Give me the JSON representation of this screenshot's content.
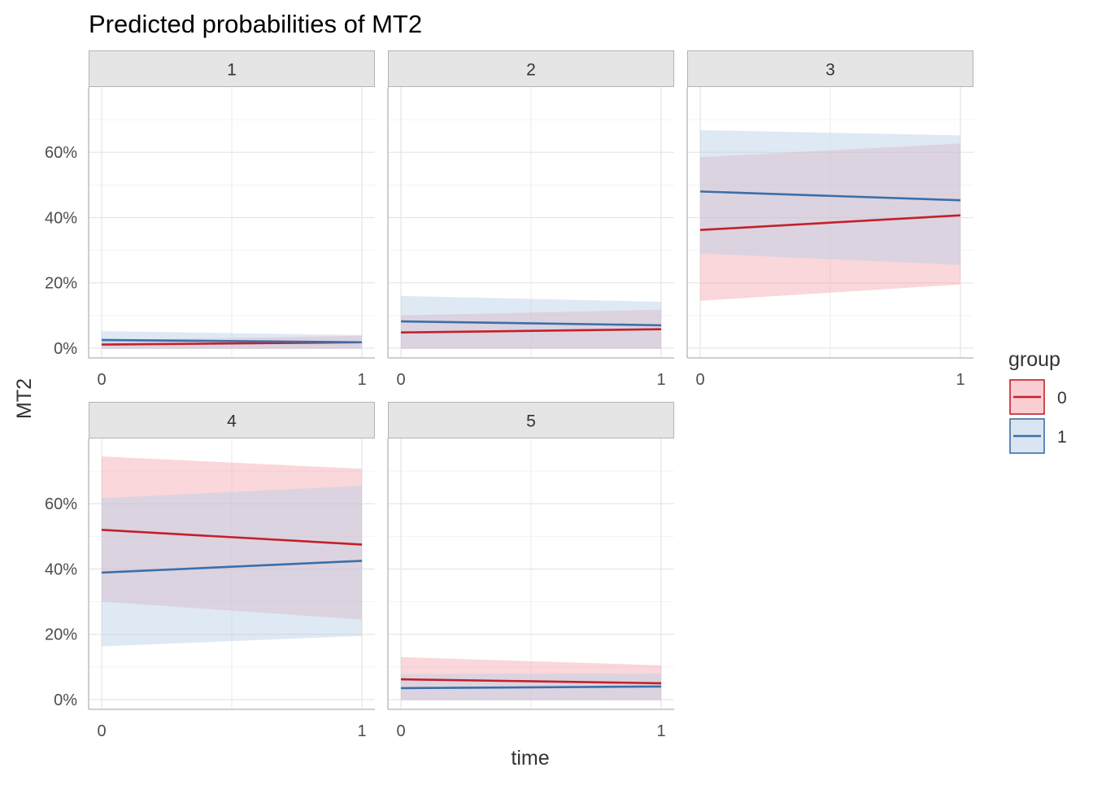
{
  "chart_data": {
    "type": "line",
    "title": "Predicted probabilities of MT2",
    "xlabel": "time",
    "ylabel": "MT2",
    "x": [
      0,
      1
    ],
    "x_ticks": [
      "0",
      "1"
    ],
    "y_ticks": [
      "0%",
      "20%",
      "40%",
      "60%"
    ],
    "y_tick_values": [
      0,
      0.2,
      0.4,
      0.6
    ],
    "ylim": [
      -0.03,
      0.8
    ],
    "grid": true,
    "legend": {
      "title": "group",
      "position": "right",
      "entries": [
        {
          "label": "0",
          "color": "#C3202A",
          "fill": "#F4A6AE"
        },
        {
          "label": "1",
          "color": "#3B6FA8",
          "fill": "#B9CFE6"
        }
      ]
    },
    "facets": [
      {
        "label": "1",
        "series": [
          {
            "group": "0",
            "values": [
              0.011,
              0.018
            ],
            "lower": [
              -0.002,
              -0.002
            ],
            "upper": [
              0.024,
              0.038
            ]
          },
          {
            "group": "1",
            "values": [
              0.025,
              0.018
            ],
            "lower": [
              -0.002,
              -0.002
            ],
            "upper": [
              0.052,
              0.04
            ]
          }
        ]
      },
      {
        "label": "2",
        "series": [
          {
            "group": "0",
            "values": [
              0.048,
              0.058
            ],
            "lower": [
              -0.002,
              -0.002
            ],
            "upper": [
              0.1,
              0.118
            ]
          },
          {
            "group": "1",
            "values": [
              0.082,
              0.07
            ],
            "lower": [
              -0.002,
              -0.002
            ],
            "upper": [
              0.16,
              0.142
            ]
          }
        ]
      },
      {
        "label": "3",
        "series": [
          {
            "group": "0",
            "values": [
              0.362,
              0.407
            ],
            "lower": [
              0.145,
              0.195
            ],
            "upper": [
              0.585,
              0.627
            ]
          },
          {
            "group": "1",
            "values": [
              0.48,
              0.453
            ],
            "lower": [
              0.29,
              0.255
            ],
            "upper": [
              0.668,
              0.652
            ]
          }
        ]
      },
      {
        "label": "4",
        "series": [
          {
            "group": "0",
            "values": [
              0.52,
              0.475
            ],
            "lower": [
              0.3,
              0.245
            ],
            "upper": [
              0.745,
              0.707
            ]
          },
          {
            "group": "1",
            "values": [
              0.389,
              0.425
            ],
            "lower": [
              0.163,
              0.195
            ],
            "upper": [
              0.617,
              0.655
            ]
          }
        ]
      },
      {
        "label": "5",
        "series": [
          {
            "group": "0",
            "values": [
              0.062,
              0.05
            ],
            "lower": [
              -0.002,
              -0.002
            ],
            "upper": [
              0.13,
              0.105
            ]
          },
          {
            "group": "1",
            "values": [
              0.035,
              0.04
            ],
            "lower": [
              -0.002,
              -0.002
            ],
            "upper": [
              0.078,
              0.08
            ]
          }
        ]
      }
    ]
  }
}
